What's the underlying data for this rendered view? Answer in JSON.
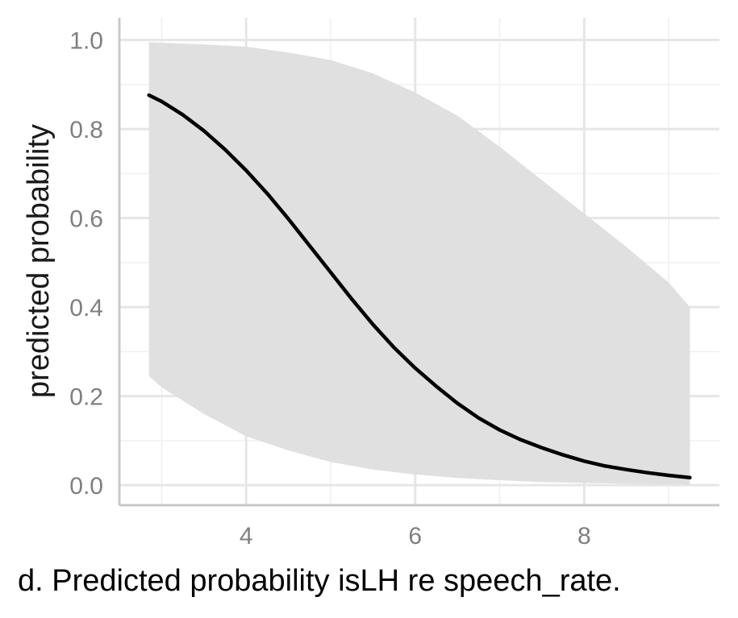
{
  "caption": "d. Predicted probability isLH re speech_rate.",
  "colors": {
    "background": "#ffffff",
    "grid_major": "#e6e6e6",
    "grid_minor": "#f0f0f0",
    "axis_line": "#c8c8c8",
    "ribbon": "#e0e0e0",
    "line": "#000000",
    "tick_text": "#7f7f7f",
    "title_text": "#1a1a1a"
  },
  "chart_data": {
    "type": "line",
    "title": "",
    "xlabel": "",
    "ylabel": "predicted probability",
    "xlim": [
      2.5,
      9.6
    ],
    "ylim": [
      -0.045,
      1.05
    ],
    "x_ticks": [
      4,
      6,
      8
    ],
    "x_tick_labels": [
      "4",
      "6",
      "8"
    ],
    "x_minor_ticks": [
      3,
      5,
      7,
      9
    ],
    "y_ticks": [
      0.0,
      0.2,
      0.4,
      0.6,
      0.8,
      1.0
    ],
    "y_tick_labels": [
      "0.0",
      "0.2",
      "0.4",
      "0.6",
      "0.8",
      "1.0"
    ],
    "y_minor_ticks": [
      0.1,
      0.3,
      0.5,
      0.7,
      0.9
    ],
    "grid": true,
    "series": [
      {
        "kind": "line",
        "x": [
          2.85,
          3.0,
          3.25,
          3.5,
          3.75,
          4.0,
          4.25,
          4.5,
          4.75,
          5.0,
          5.25,
          5.5,
          5.75,
          6.0,
          6.25,
          6.5,
          6.75,
          7.0,
          7.25,
          7.5,
          7.75,
          8.0,
          8.25,
          8.5,
          8.75,
          9.0,
          9.25
        ],
        "y": [
          0.876,
          0.862,
          0.832,
          0.796,
          0.754,
          0.707,
          0.655,
          0.598,
          0.538,
          0.478,
          0.418,
          0.361,
          0.309,
          0.263,
          0.222,
          0.184,
          0.151,
          0.124,
          0.102,
          0.084,
          0.068,
          0.054,
          0.043,
          0.035,
          0.028,
          0.022,
          0.017
        ]
      },
      {
        "kind": "ribbon",
        "x": [
          2.85,
          3.0,
          3.5,
          4.0,
          4.5,
          5.0,
          5.5,
          6.0,
          6.5,
          7.0,
          7.5,
          8.0,
          8.5,
          9.0,
          9.25
        ],
        "upper": [
          0.995,
          0.994,
          0.99,
          0.985,
          0.972,
          0.955,
          0.925,
          0.882,
          0.83,
          0.76,
          0.685,
          0.61,
          0.535,
          0.455,
          0.4
        ],
        "lower": [
          0.245,
          0.22,
          0.16,
          0.11,
          0.078,
          0.052,
          0.035,
          0.024,
          0.016,
          0.011,
          0.007,
          0.005,
          0.003,
          0.002,
          0.002
        ]
      }
    ]
  }
}
